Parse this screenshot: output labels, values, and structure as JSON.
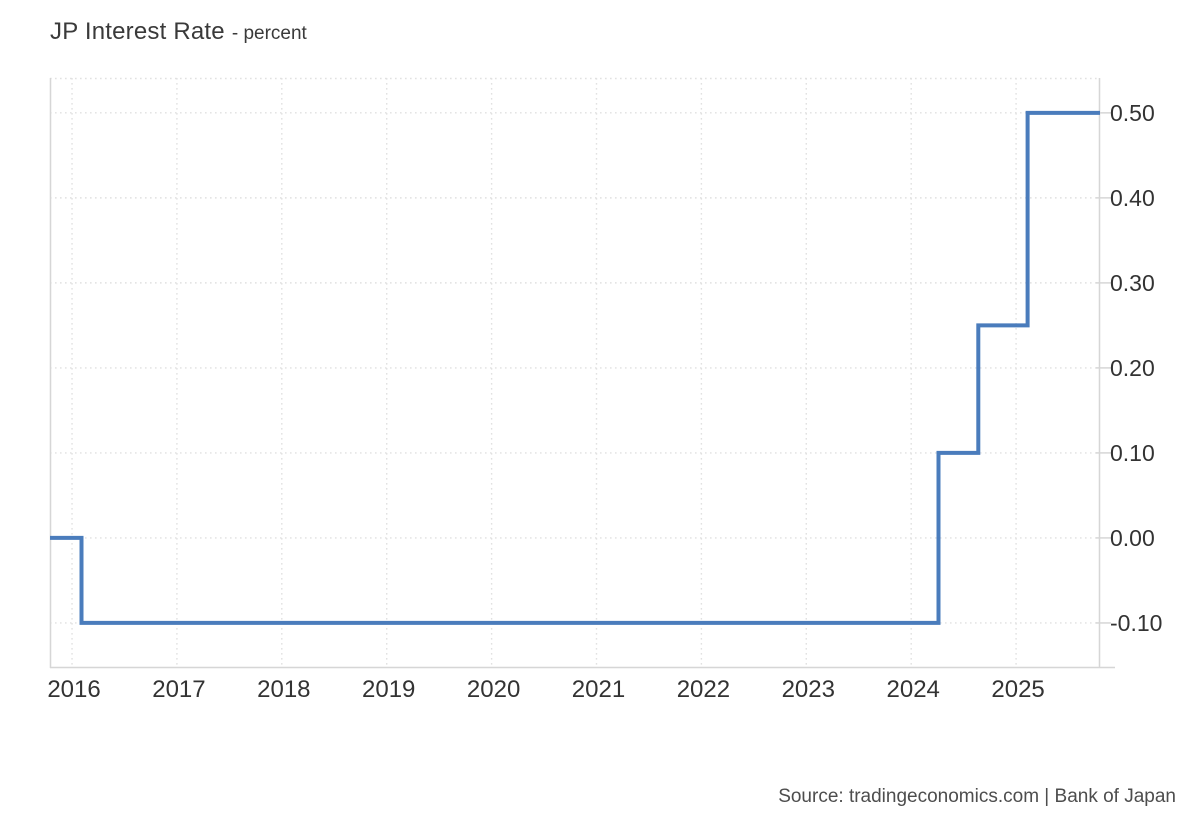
{
  "header": {
    "title": "JP Interest Rate",
    "subtitle": "- percent"
  },
  "footer": {
    "source": "Source: tradingeconomics.com | Bank of Japan"
  },
  "colors": {
    "line": "#4a7cbc",
    "gridline": "#e1e1e1",
    "border": "#d6d6d6",
    "tick_label": "#333333",
    "title_text": "#3a3a3a",
    "source_text": "#4d4d4d"
  },
  "chart_data": {
    "type": "line",
    "line_style": "step-after",
    "title": "JP Interest Rate",
    "ylabel": "percent",
    "grid": "dotted",
    "legend": "none",
    "series": [
      {
        "name": "JP Interest Rate",
        "color": "#4a7cbc",
        "points": [
          {
            "x": 2015.79,
            "y": 0.0
          },
          {
            "x": 2016.09,
            "y": -0.1
          },
          {
            "x": 2024.26,
            "y": 0.1
          },
          {
            "x": 2024.64,
            "y": 0.25
          },
          {
            "x": 2025.11,
            "y": 0.5
          },
          {
            "x": 2025.8,
            "y": 0.5
          }
        ]
      }
    ],
    "x_ticks": [
      2016,
      2017,
      2018,
      2019,
      2020,
      2021,
      2022,
      2023,
      2024,
      2025
    ],
    "x_tick_labels": [
      "2016",
      "2017",
      "2018",
      "2019",
      "2020",
      "2021",
      "2022",
      "2023",
      "2024",
      "2025"
    ],
    "y_ticks": [
      0.5,
      0.4,
      0.3,
      0.2,
      0.1,
      0.0,
      -0.1
    ],
    "y_tick_labels": [
      "0.50",
      "0.40",
      "0.30",
      "0.20",
      "0.10",
      "0.00",
      "-0.10"
    ],
    "xlim": [
      2015.79,
      2025.8
    ],
    "ylim": [
      -0.153,
      0.541
    ]
  }
}
